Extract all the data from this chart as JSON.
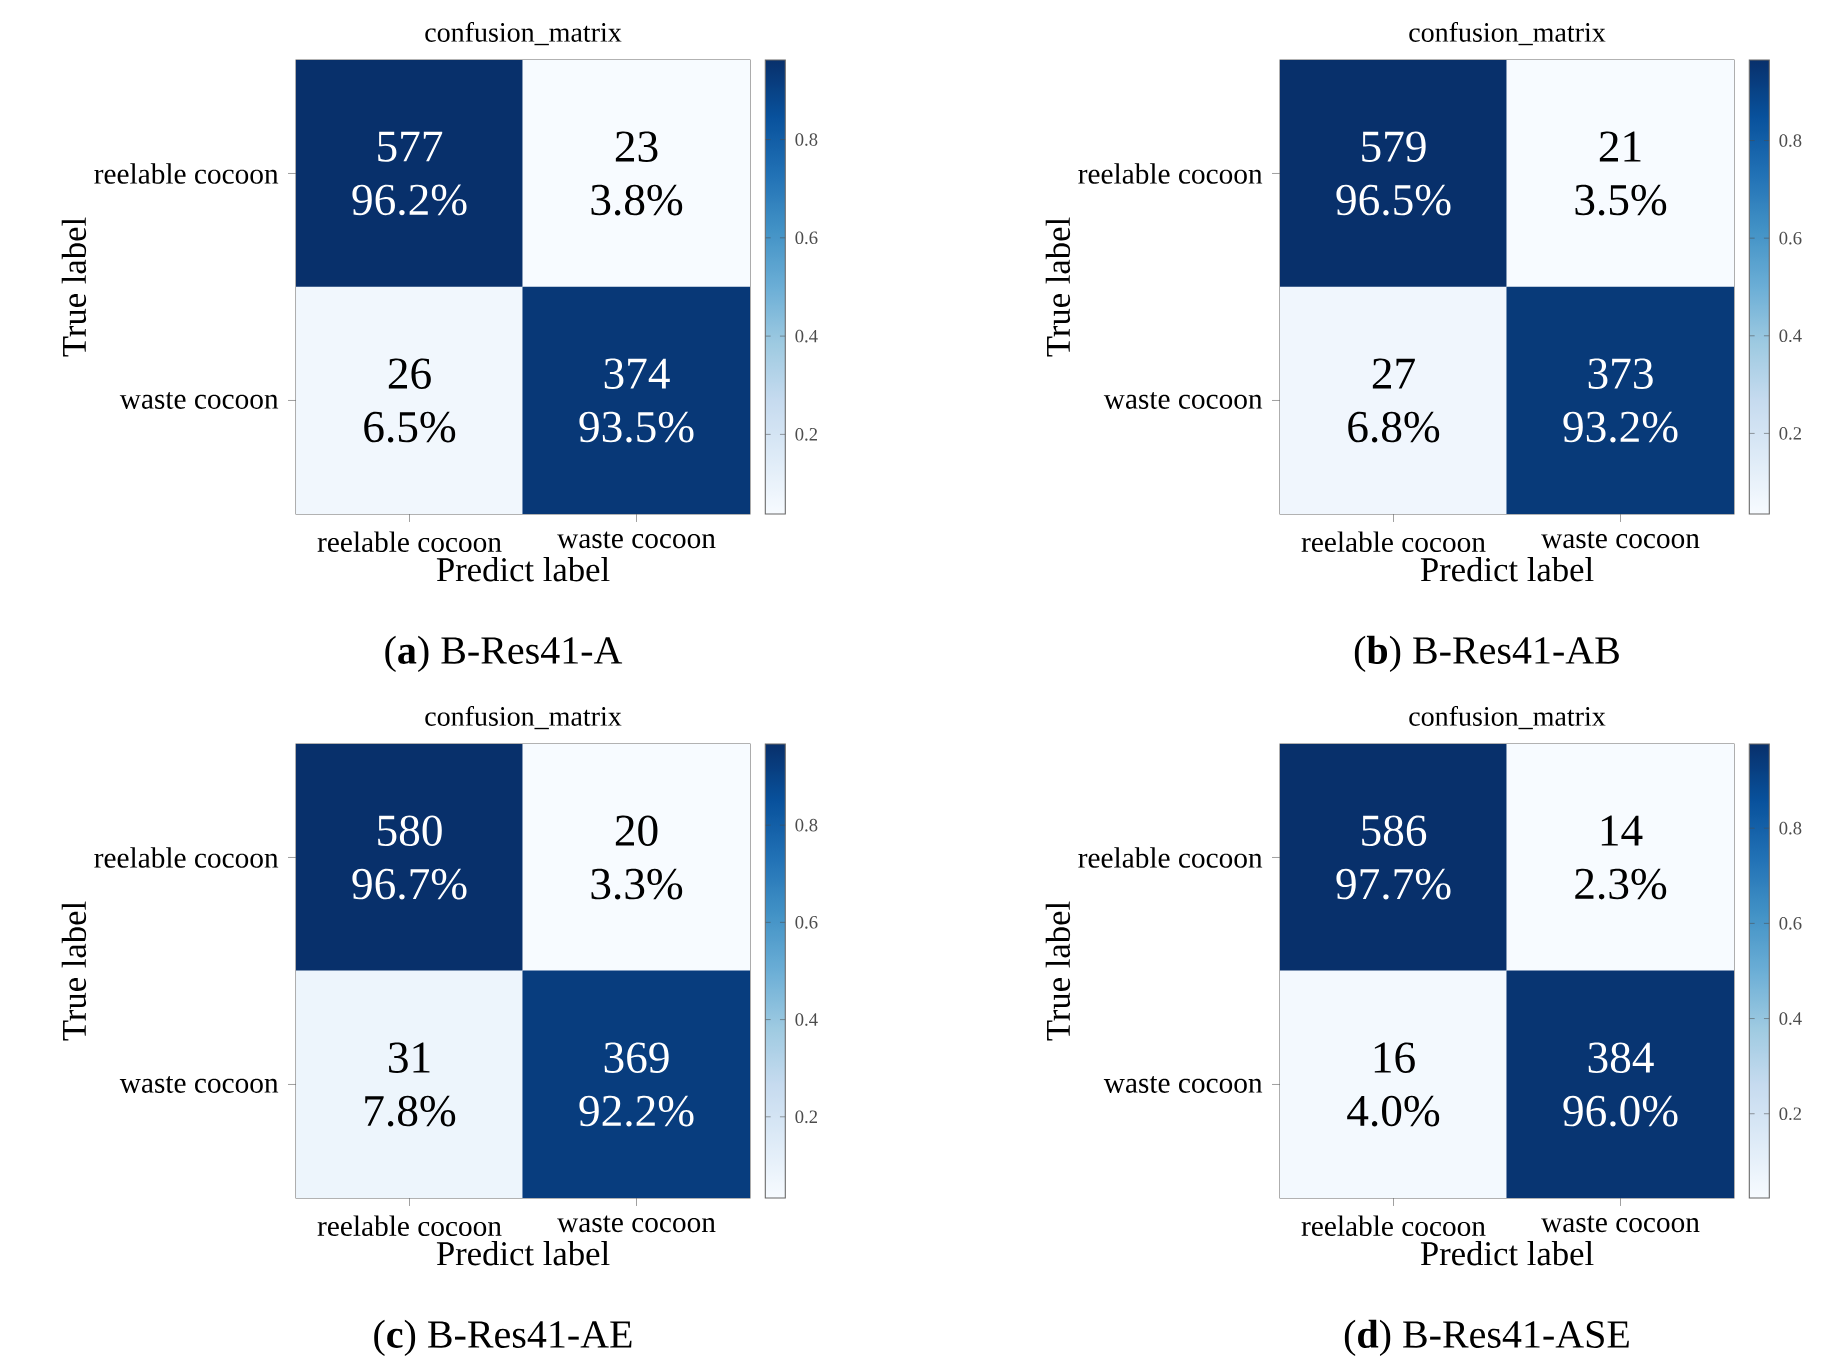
{
  "chart_data": [
    {
      "type": "heatmap",
      "title": "confusion_matrix",
      "xlabel": "Predict label",
      "ylabel": "True label",
      "categories": [
        "reelable cocoon",
        "waste cocoon"
      ],
      "y_categories": [
        "reelable cocoon",
        "waste cocoon"
      ],
      "cells": [
        [
          0.962,
          0.038
        ],
        [
          0.065,
          0.935
        ]
      ],
      "cell_labels": [
        [
          "577 96.2%",
          "23 3.8%"
        ],
        [
          "26 6.5%",
          "374 93.5%"
        ]
      ],
      "clim": [
        0.038,
        0.962
      ],
      "cticks": [
        0.2,
        0.4,
        0.6,
        0.8
      ],
      "annotations": [
        "(**a**) B-Res41-A"
      ]
    },
    {
      "type": "heatmap",
      "title": "confusion_matrix",
      "xlabel": "Predict label",
      "ylabel": "True label",
      "categories": [
        "reelable cocoon",
        "waste cocoon"
      ],
      "y_categories": [
        "reelable cocoon",
        "waste cocoon"
      ],
      "cells": [
        [
          0.965,
          0.035
        ],
        [
          0.068,
          0.932
        ]
      ],
      "cell_labels": [
        [
          "579 96.5%",
          "21 3.5%"
        ],
        [
          "27 6.8%",
          "373 93.2%"
        ]
      ],
      "clim": [
        0.035,
        0.965
      ],
      "cticks": [
        0.2,
        0.4,
        0.6,
        0.8
      ],
      "annotations": [
        "(**b**) B-Res41-AB"
      ]
    },
    {
      "type": "heatmap",
      "title": "confusion_matrix",
      "xlabel": "Predict label",
      "ylabel": "True label",
      "categories": [
        "reelable cocoon",
        "waste cocoon"
      ],
      "y_categories": [
        "reelable cocoon",
        "waste cocoon"
      ],
      "cells": [
        [
          0.967,
          0.033
        ],
        [
          0.078,
          0.922
        ]
      ],
      "cell_labels": [
        [
          "580 96.7%",
          "20 3.3%"
        ],
        [
          "31 7.8%",
          "369 92.2%"
        ]
      ],
      "clim": [
        0.033,
        0.967
      ],
      "cticks": [
        0.2,
        0.4,
        0.6,
        0.8
      ],
      "annotations": [
        "(**c**) B-Res41-AE"
      ]
    },
    {
      "type": "heatmap",
      "title": "confusion_matrix",
      "xlabel": "Predict label",
      "ylabel": "True label",
      "categories": [
        "reelable cocoon",
        "waste cocoon"
      ],
      "y_categories": [
        "reelable cocoon",
        "waste cocoon"
      ],
      "cells": [
        [
          0.977,
          0.023
        ],
        [
          0.04,
          0.96
        ]
      ],
      "cell_labels": [
        [
          "586 97.7%",
          "14 2.3%"
        ],
        [
          "16 4.0%",
          "384 96.0%"
        ]
      ],
      "clim": [
        0.023,
        0.977
      ],
      "cticks": [
        0.2,
        0.4,
        0.6,
        0.8
      ],
      "annotations": [
        "(**d**) B-Res41-ASE"
      ]
    }
  ]
}
